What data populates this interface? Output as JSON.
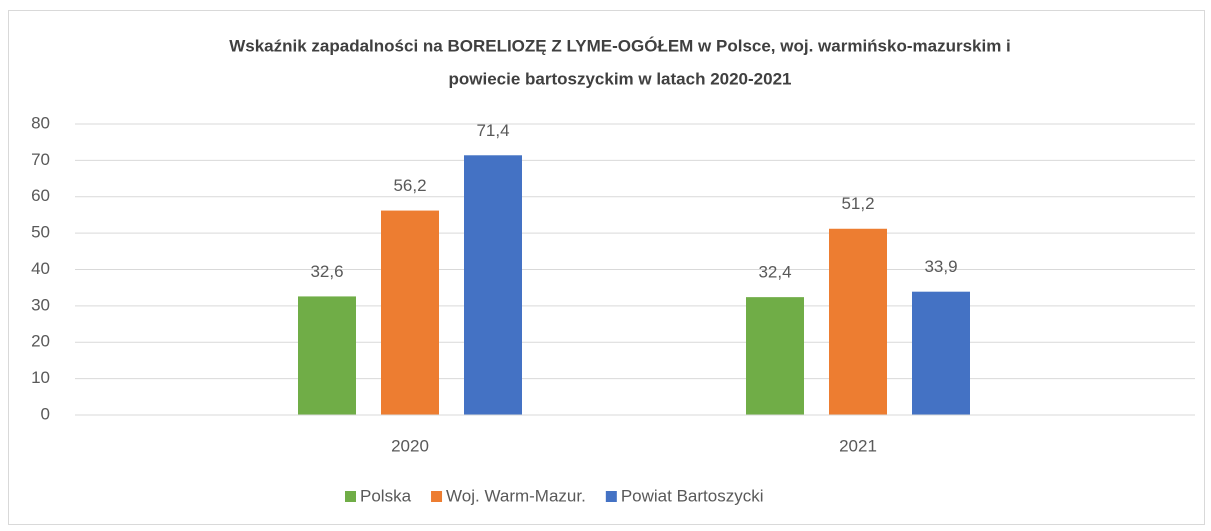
{
  "chart_data": {
    "type": "bar",
    "title": [
      "Wskaźnik zapadalności na BORELIOZĘ Z LYME-OGÓŁEM w Polsce, woj. warmińsko-mazurskim i",
      "powiecie bartoszyckim w latach 2020-2021"
    ],
    "categories": [
      "2020",
      "2021"
    ],
    "series": [
      {
        "name": "Polska",
        "color": "#70ad47",
        "values": [
          32.6,
          32.4
        ],
        "value_labels": [
          "32,6",
          "32,4"
        ]
      },
      {
        "name": "Woj. Warm-Mazur.",
        "color": "#ed7d31",
        "values": [
          56.2,
          51.2
        ],
        "value_labels": [
          "56,2",
          "51,2"
        ]
      },
      {
        "name": "Powiat Bartoszycki",
        "color": "#4472c4",
        "values": [
          71.4,
          33.9
        ],
        "value_labels": [
          "71,4",
          "33,9"
        ]
      }
    ],
    "ylim": [
      0,
      80
    ],
    "yticks": [
      0,
      10,
      20,
      30,
      40,
      50,
      60,
      70,
      80
    ],
    "grid": true,
    "legend": "bottom"
  }
}
